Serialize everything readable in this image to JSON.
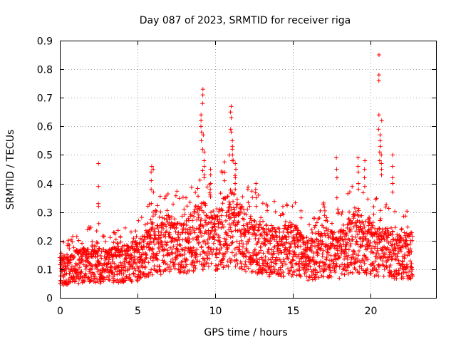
{
  "chart_data": {
    "type": "scatter",
    "title": "Day 087 of 2023, SRMTID for receiver riga",
    "xlabel": "GPS time / hours",
    "ylabel": "SRMTID / TECUs",
    "xlim": [
      0,
      24.2
    ],
    "ylim": [
      0,
      0.9
    ],
    "x_ticks": [
      0,
      5,
      10,
      15,
      20
    ],
    "y_ticks": [
      0,
      0.1,
      0.2,
      0.3,
      0.4,
      0.5,
      0.6,
      0.7,
      0.8,
      0.9
    ],
    "x_tick_labels": [
      "0",
      "5",
      "10",
      "15",
      "20"
    ],
    "y_tick_labels": [
      "0",
      "0.1",
      "0.2",
      "0.3",
      "0.4",
      "0.5",
      "0.6",
      "0.7",
      "0.8",
      "0.9"
    ],
    "grid": true,
    "marker": "+",
    "marker_color": "#ff0000",
    "x_data_range": [
      0,
      22.7
    ],
    "baseline": [
      [
        0,
        0.09
      ],
      [
        1,
        0.11
      ],
      [
        2,
        0.12
      ],
      [
        3,
        0.11
      ],
      [
        4,
        0.12
      ],
      [
        5,
        0.13
      ],
      [
        6,
        0.17
      ],
      [
        7,
        0.19
      ],
      [
        8,
        0.17
      ],
      [
        9,
        0.22
      ],
      [
        10,
        0.2
      ],
      [
        11,
        0.25
      ],
      [
        12,
        0.19
      ],
      [
        13,
        0.17
      ],
      [
        14,
        0.16
      ],
      [
        15,
        0.17
      ],
      [
        16,
        0.13
      ],
      [
        17,
        0.16
      ],
      [
        18,
        0.15
      ],
      [
        19,
        0.2
      ],
      [
        20,
        0.17
      ],
      [
        21,
        0.16
      ],
      [
        22,
        0.14
      ],
      [
        22.7,
        0.15
      ]
    ],
    "spikes": [
      {
        "x": 2.5,
        "values": [
          0.47,
          0.39,
          0.33,
          0.32,
          0.26
        ]
      },
      {
        "x": 5.9,
        "values": [
          0.46,
          0.44,
          0.41,
          0.38,
          0.33
        ]
      },
      {
        "x": 6.0,
        "values": [
          0.45,
          0.37,
          0.3
        ]
      },
      {
        "x": 9.1,
        "values": [
          0.64,
          0.62,
          0.6,
          0.58,
          0.55
        ]
      },
      {
        "x": 9.2,
        "values": [
          0.73,
          0.71,
          0.68,
          0.57,
          0.52
        ]
      },
      {
        "x": 9.3,
        "values": [
          0.51,
          0.48,
          0.46,
          0.43,
          0.42
        ]
      },
      {
        "x": 9.7,
        "values": [
          0.45,
          0.43,
          0.4,
          0.38,
          0.36
        ]
      },
      {
        "x": 11.0,
        "values": [
          0.67,
          0.65,
          0.63,
          0.59,
          0.58
        ]
      },
      {
        "x": 11.1,
        "values": [
          0.55,
          0.53,
          0.52,
          0.5,
          0.48
        ]
      },
      {
        "x": 11.3,
        "values": [
          0.47,
          0.45,
          0.42,
          0.4,
          0.38
        ]
      },
      {
        "x": 12.6,
        "values": [
          0.4,
          0.38,
          0.35,
          0.32
        ]
      },
      {
        "x": 17.8,
        "values": [
          0.49,
          0.45,
          0.42,
          0.35
        ]
      },
      {
        "x": 19.2,
        "values": [
          0.49,
          0.46,
          0.44,
          0.4,
          0.38
        ]
      },
      {
        "x": 19.6,
        "values": [
          0.48,
          0.45,
          0.42,
          0.39
        ]
      },
      {
        "x": 20.5,
        "values": [
          0.85,
          0.78,
          0.76,
          0.64,
          0.59
        ]
      },
      {
        "x": 20.6,
        "values": [
          0.57,
          0.55,
          0.53,
          0.51,
          0.48
        ]
      },
      {
        "x": 20.7,
        "values": [
          0.62,
          0.5,
          0.47,
          0.45,
          0.43
        ]
      },
      {
        "x": 21.4,
        "values": [
          0.5,
          0.46,
          0.42,
          0.4,
          0.37
        ]
      }
    ]
  }
}
